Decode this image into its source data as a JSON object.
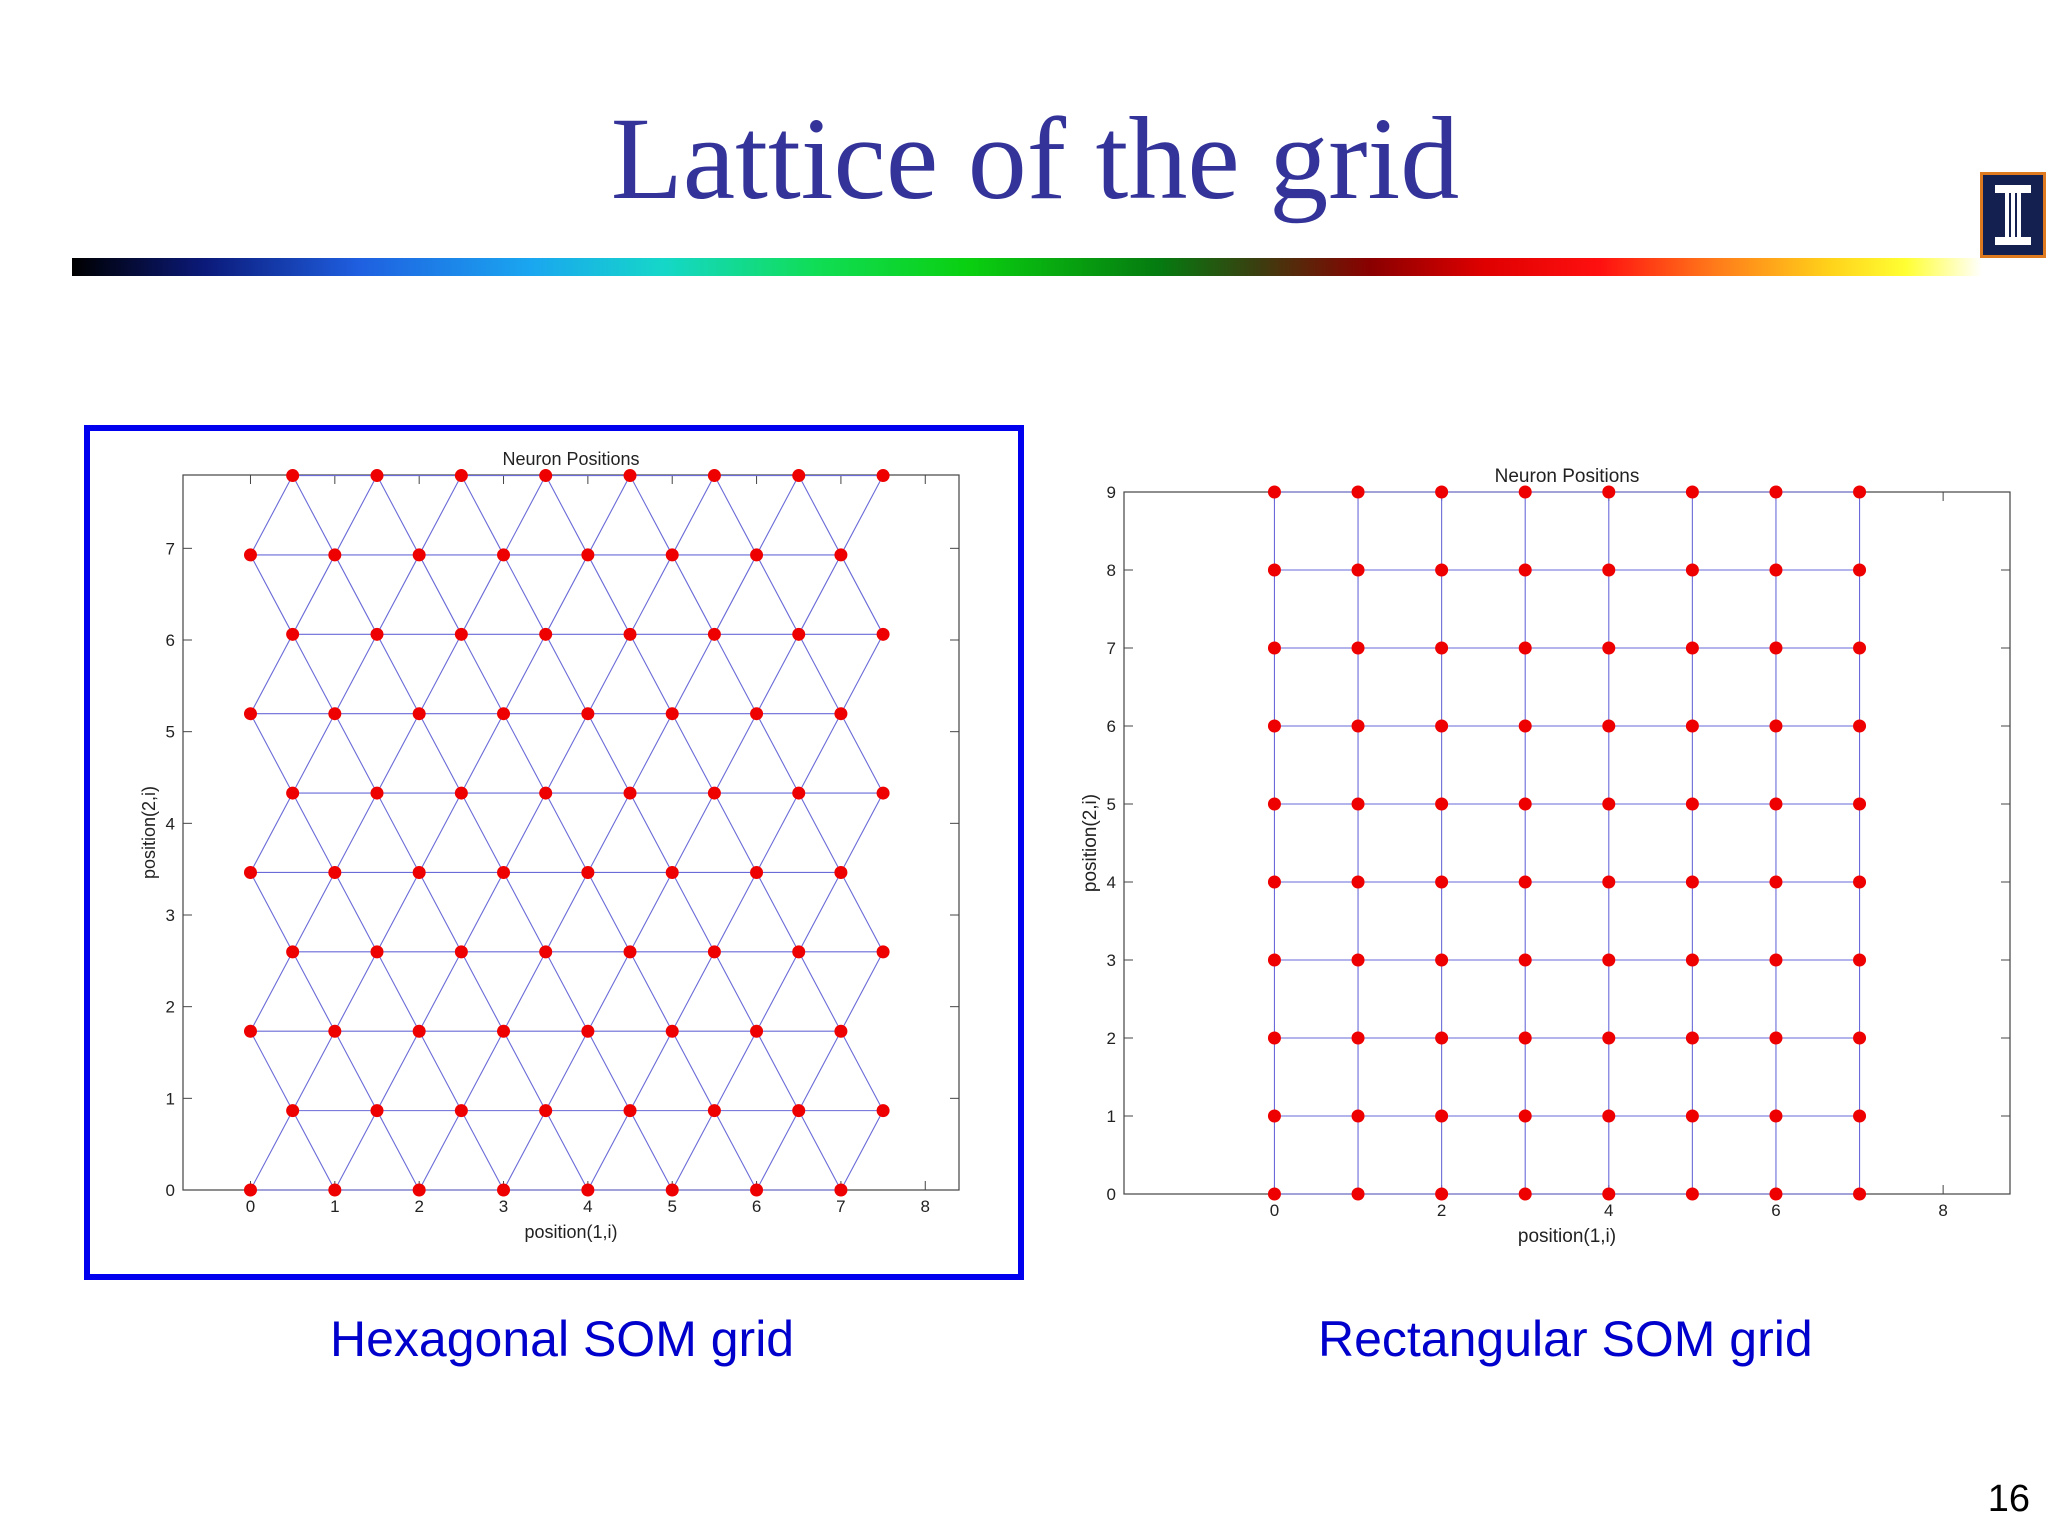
{
  "slide": {
    "title": "Lattice of the grid",
    "page_number": "16",
    "captions": [
      "Hexagonal SOM grid",
      "Rectangular SOM grid"
    ]
  },
  "colors": {
    "title": "#333399",
    "neuron": "#ee0000",
    "edge": "#6a6ad8",
    "caption": "#0000cc",
    "highlight_border": "#0000ee"
  },
  "chart_data": [
    {
      "type": "scatter",
      "variant": "hexagonal-lattice",
      "title": "Neuron Positions",
      "xlabel": "position(1,i)",
      "ylabel": "position(2,i)",
      "xlim": [
        -0.8,
        8.4
      ],
      "ylim": [
        0,
        7.8
      ],
      "xticks": [
        0,
        1,
        2,
        3,
        4,
        5,
        6,
        7,
        8
      ],
      "yticks": [
        0,
        1,
        2,
        3,
        4,
        5,
        6,
        7
      ],
      "grid_cols": 8,
      "grid_rows": 10,
      "x_spacing": 1,
      "row_spacing": 0.866,
      "odd_row_offset": 0.5,
      "grid": false,
      "highlighted": true
    },
    {
      "type": "scatter",
      "variant": "rectangular-lattice",
      "title": "Neuron Positions",
      "xlabel": "position(1,i)",
      "ylabel": "position(2,i)",
      "xlim": [
        -1.8,
        8.8
      ],
      "ylim": [
        0,
        9
      ],
      "xticks": [
        0,
        2,
        4,
        6,
        8
      ],
      "yticks": [
        0,
        1,
        2,
        3,
        4,
        5,
        6,
        7,
        8,
        9
      ],
      "grid_cols": 8,
      "grid_rows": 10,
      "x_spacing": 1,
      "row_spacing": 1,
      "odd_row_offset": 0,
      "grid": false,
      "highlighted": false
    }
  ]
}
